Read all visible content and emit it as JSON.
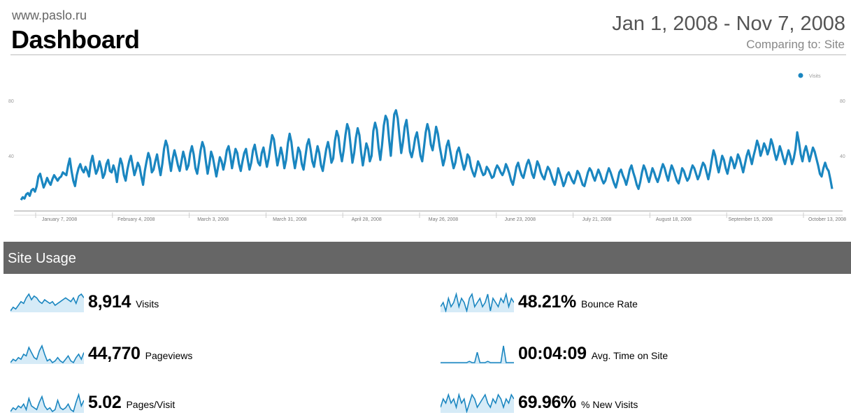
{
  "header": {
    "site": "www.paslo.ru",
    "title": "Dashboard",
    "date_range": "Jan 1, 2008 - Nov 7, 2008",
    "comparing": "Comparing to: Site"
  },
  "chart_data": {
    "type": "line",
    "legend": "Visits",
    "legend_position": "top-right",
    "series_color": "#1a86c0",
    "y_ticks": [
      80,
      40
    ],
    "y_range": [
      0,
      80
    ],
    "x_ticks": [
      "January 7, 2008",
      "February 4, 2008",
      "March 3, 2008",
      "March 31, 2008",
      "April 28, 2008",
      "May 26, 2008",
      "June 23, 2008",
      "July 21, 2008",
      "August 18, 2008",
      "September 15, 2008",
      "October 13, 2008"
    ],
    "values": [
      8,
      10,
      9,
      12,
      13,
      11,
      15,
      16,
      14,
      18,
      25,
      27,
      22,
      17,
      20,
      24,
      21,
      19,
      23,
      26,
      24,
      22,
      24,
      25,
      28,
      27,
      26,
      33,
      38,
      29,
      22,
      18,
      26,
      31,
      34,
      30,
      28,
      32,
      29,
      25,
      35,
      40,
      33,
      27,
      30,
      36,
      31,
      24,
      27,
      34,
      37,
      29,
      28,
      33,
      29,
      21,
      31,
      38,
      34,
      26,
      22,
      30,
      36,
      40,
      33,
      26,
      30,
      35,
      32,
      25,
      19,
      29,
      36,
      42,
      38,
      28,
      30,
      36,
      41,
      33,
      26,
      34,
      45,
      51,
      47,
      37,
      29,
      38,
      44,
      39,
      33,
      29,
      36,
      43,
      38,
      30,
      33,
      42,
      47,
      41,
      31,
      27,
      35,
      44,
      50,
      46,
      36,
      27,
      34,
      43,
      39,
      32,
      25,
      32,
      39,
      36,
      30,
      36,
      44,
      47,
      40,
      31,
      38,
      45,
      42,
      34,
      29,
      36,
      42,
      45,
      37,
      30,
      35,
      44,
      48,
      41,
      35,
      33,
      42,
      46,
      39,
      32,
      38,
      47,
      55,
      52,
      42,
      33,
      39,
      46,
      40,
      31,
      37,
      49,
      56,
      50,
      39,
      31,
      38,
      46,
      43,
      34,
      30,
      39,
      48,
      52,
      45,
      36,
      32,
      40,
      47,
      42,
      33,
      29,
      37,
      45,
      50,
      44,
      35,
      38,
      51,
      58,
      54,
      43,
      36,
      44,
      55,
      63,
      59,
      47,
      35,
      42,
      53,
      60,
      55,
      42,
      33,
      41,
      49,
      45,
      36,
      40,
      58,
      64,
      59,
      46,
      37,
      48,
      62,
      69,
      66,
      52,
      40,
      56,
      70,
      73,
      67,
      54,
      42,
      50,
      61,
      66,
      55,
      43,
      39,
      45,
      53,
      57,
      49,
      40,
      36,
      46,
      57,
      63,
      58,
      48,
      44,
      52,
      61,
      56,
      47,
      40,
      33,
      38,
      47,
      51,
      44,
      37,
      31,
      35,
      43,
      46,
      41,
      35,
      30,
      34,
      41,
      39,
      32,
      28,
      25,
      30,
      36,
      33,
      29,
      26,
      27,
      32,
      30,
      27,
      24,
      25,
      30,
      33,
      31,
      28,
      26,
      29,
      34,
      31,
      27,
      22,
      19,
      25,
      32,
      35,
      30,
      26,
      24,
      29,
      34,
      37,
      33,
      27,
      24,
      30,
      36,
      33,
      28,
      25,
      23,
      28,
      32,
      30,
      26,
      22,
      19,
      24,
      31,
      27,
      23,
      18,
      21,
      26,
      28,
      25,
      22,
      20,
      24,
      29,
      27,
      23,
      19,
      18,
      23,
      28,
      31,
      29,
      25,
      22,
      26,
      30,
      27,
      23,
      20,
      22,
      27,
      31,
      28,
      24,
      20,
      17,
      22,
      28,
      30,
      26,
      23,
      19,
      24,
      30,
      33,
      28,
      24,
      19,
      16,
      21,
      28,
      33,
      30,
      25,
      21,
      26,
      31,
      28,
      24,
      21,
      25,
      30,
      34,
      31,
      26,
      22,
      28,
      33,
      30,
      26,
      22,
      20,
      25,
      31,
      29,
      25,
      22,
      24,
      29,
      33,
      31,
      27,
      23,
      26,
      31,
      35,
      33,
      28,
      23,
      29,
      37,
      44,
      40,
      33,
      28,
      34,
      40,
      37,
      31,
      27,
      33,
      39,
      36,
      31,
      35,
      41,
      38,
      33,
      28,
      34,
      40,
      44,
      39,
      34,
      40,
      45,
      51,
      47,
      40,
      44,
      49,
      46,
      41,
      45,
      52,
      48,
      42,
      37,
      41,
      47,
      43,
      38,
      34,
      39,
      44,
      40,
      34,
      38,
      45,
      57,
      50,
      41,
      36,
      43,
      47,
      42,
      36,
      41,
      46,
      43,
      38,
      33,
      27,
      25,
      31,
      35,
      31,
      29,
      23,
      16
    ]
  },
  "section": {
    "title": "Site Usage"
  },
  "metrics": [
    {
      "value": "8,914",
      "label": "Visits",
      "spark": [
        5,
        7,
        6,
        8,
        10,
        9,
        12,
        14,
        11,
        13,
        12,
        10,
        9,
        11,
        10,
        9,
        10,
        8,
        9,
        10,
        11,
        12,
        11,
        10,
        12,
        9,
        13,
        14,
        12
      ]
    },
    {
      "value": "48.21%",
      "label": "Bounce Rate",
      "spark": [
        9,
        10,
        8,
        11,
        9,
        10,
        12,
        9,
        11,
        10,
        8,
        11,
        12,
        9,
        10,
        11,
        9,
        10,
        12,
        8,
        11,
        10,
        9,
        11,
        10,
        12,
        9,
        11,
        10
      ]
    },
    {
      "value": "44,770",
      "label": "Pageviews",
      "spark": [
        3,
        5,
        4,
        6,
        5,
        8,
        7,
        12,
        9,
        6,
        5,
        10,
        13,
        8,
        4,
        5,
        3,
        4,
        6,
        4,
        3,
        5,
        7,
        4,
        3,
        6,
        8,
        5,
        9
      ]
    },
    {
      "value": "00:04:09",
      "label": "Avg. Time on Site",
      "spark": [
        2,
        2,
        2,
        2,
        2,
        2,
        2,
        2,
        2,
        2,
        2,
        3,
        2,
        2,
        10,
        2,
        2,
        2,
        3,
        2,
        2,
        2,
        2,
        2,
        15,
        2,
        2,
        2,
        2
      ]
    },
    {
      "value": "5.02",
      "label": "Pages/Visit",
      "spark": [
        2,
        4,
        3,
        5,
        4,
        6,
        3,
        9,
        5,
        4,
        3,
        7,
        10,
        5,
        3,
        4,
        2,
        3,
        8,
        4,
        3,
        4,
        6,
        3,
        2,
        7,
        11,
        5,
        8
      ]
    },
    {
      "value": "69.96%",
      "label": "% New Visits",
      "spark": [
        11,
        13,
        12,
        14,
        12,
        13,
        11,
        14,
        12,
        13,
        10,
        12,
        14,
        13,
        11,
        12,
        13,
        14,
        12,
        11,
        13,
        12,
        14,
        13,
        11,
        13,
        12,
        14,
        13
      ]
    }
  ]
}
